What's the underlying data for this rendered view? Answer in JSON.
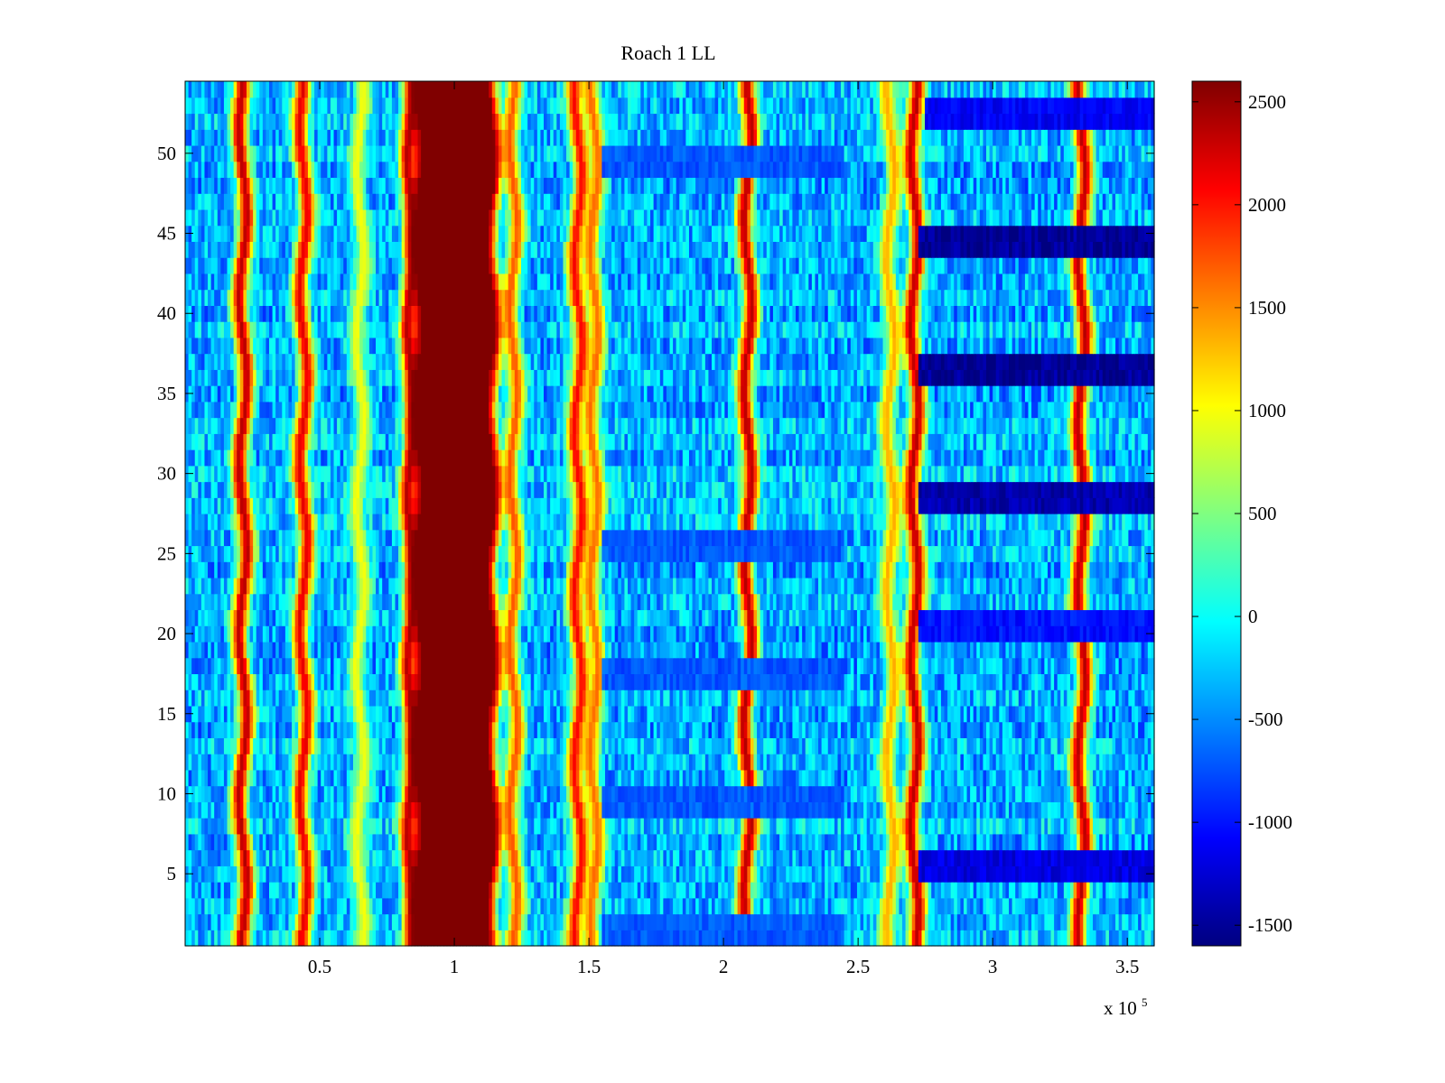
{
  "chart_data": {
    "type": "heatmap",
    "title": "Roach 1 LL",
    "xlabel": "",
    "ylabel": "",
    "x_exponent_label": "x 10",
    "x_exponent_power": "5",
    "xlim": [
      0,
      360000
    ],
    "ylim": [
      0.5,
      54.5
    ],
    "x_ticks": [
      50000,
      100000,
      150000,
      200000,
      250000,
      300000,
      350000
    ],
    "x_tick_labels": [
      "0.5",
      "1",
      "1.5",
      "2",
      "2.5",
      "3",
      "3.5"
    ],
    "y_ticks": [
      5,
      10,
      15,
      20,
      25,
      30,
      35,
      40,
      45,
      50
    ],
    "y_tick_labels": [
      "5",
      "10",
      "15",
      "20",
      "25",
      "30",
      "35",
      "40",
      "45",
      "50"
    ],
    "rows": 54,
    "colorbar": {
      "colormap": "jet",
      "clim": [
        -1600,
        2600
      ],
      "ticks": [
        2500,
        2000,
        1500,
        1000,
        500,
        0,
        -500,
        -1000,
        -1500
      ],
      "tick_labels": [
        "2500",
        "2000",
        "1500",
        "1000",
        "500",
        "0",
        "-500",
        "-1000",
        "-1500"
      ]
    },
    "vertical_features": [
      {
        "x": 21500,
        "level": 2600
      },
      {
        "x": 44000,
        "level": 2400
      },
      {
        "x": 65000,
        "level": 1100
      },
      {
        "x": 84000,
        "level": 2600
      },
      {
        "x": 100000,
        "halfwidth": 14000,
        "level": 2600
      },
      {
        "x": 122000,
        "level": 1900
      },
      {
        "x": 146000,
        "level": 2300
      },
      {
        "x": 152000,
        "level": 1800
      },
      {
        "x": 209000,
        "level": 2600
      },
      {
        "x": 262000,
        "level": 1500
      },
      {
        "x": 271000,
        "level": 2600
      },
      {
        "x": 333000,
        "level": 2600
      }
    ],
    "horizontal_low_bands": [
      {
        "rows": [
          52,
          53
        ],
        "x_range": [
          275000,
          360000
        ],
        "level": -1100
      },
      {
        "rows": [
          44,
          45
        ],
        "x_range": [
          272000,
          360000
        ],
        "level": -1500
      },
      {
        "rows": [
          36,
          37
        ],
        "x_range": [
          272000,
          360000
        ],
        "level": -1500
      },
      {
        "rows": [
          28,
          29
        ],
        "x_range": [
          272000,
          360000
        ],
        "level": -1400
      },
      {
        "rows": [
          20,
          21
        ],
        "x_range": [
          272000,
          360000
        ],
        "level": -1000
      },
      {
        "rows": [
          5,
          6
        ],
        "x_range": [
          272000,
          360000
        ],
        "level": -1200
      },
      {
        "rows": [
          49,
          50
        ],
        "x_range": [
          155000,
          245000
        ],
        "level": -700
      },
      {
        "rows": [
          25,
          26
        ],
        "x_range": [
          155000,
          245000
        ],
        "level": -700
      },
      {
        "rows": [
          17,
          18
        ],
        "x_range": [
          155000,
          245000
        ],
        "level": -700
      },
      {
        "rows": [
          9,
          10
        ],
        "x_range": [
          155000,
          245000
        ],
        "level": -700
      },
      {
        "rows": [
          1,
          2
        ],
        "x_range": [
          155000,
          245000
        ],
        "level": -700
      }
    ]
  }
}
